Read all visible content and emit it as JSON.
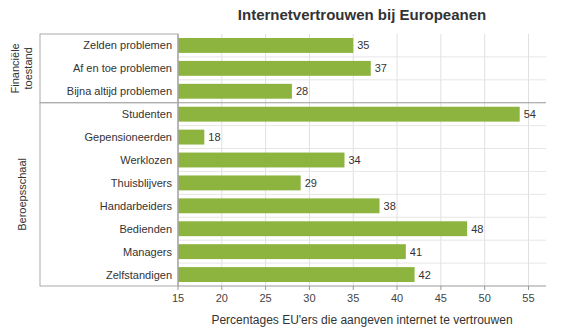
{
  "chart_data": {
    "type": "bar",
    "orientation": "horizontal",
    "title": "Internetvertrouwen bij Europeanen",
    "x_label": "Percentages EU'ers die aangeven internet te vertrouwen",
    "categories": [
      "Zelfstandigen",
      "Managers",
      "Bedienden",
      "Handarbeiders",
      "Thuisblijvers",
      "Werklozen",
      "Gepensioneerden",
      "Studenten",
      "Bijna altijd problemen",
      "Af en toe problemen",
      "Zelden problemen"
    ],
    "values": [
      42,
      41,
      48,
      38,
      29,
      34,
      18,
      54,
      28,
      37,
      35
    ],
    "color": "#8db43e",
    "xlim": [
      15,
      57
    ],
    "xticks": [
      15,
      20,
      25,
      30,
      35,
      40,
      45,
      50,
      55
    ],
    "grid": true,
    "data_labels": true,
    "groups": [
      {
        "label": "Beroepsschaal",
        "first": 0,
        "last": 7
      },
      {
        "label": "Financiële\ntoestand",
        "first": 8,
        "last": 10
      }
    ]
  }
}
